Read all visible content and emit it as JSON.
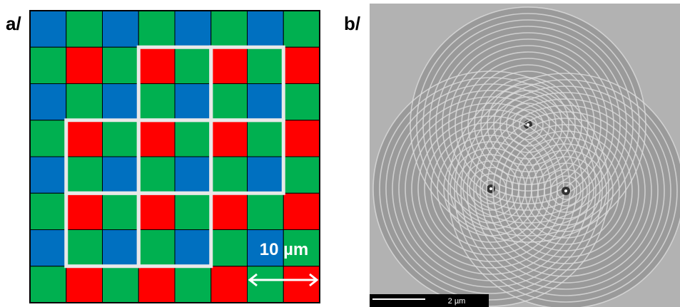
{
  "panels": [
    {
      "label": "a/",
      "scale_label": "10 µm"
    },
    {
      "label": "b/",
      "scale_label": "2 µm"
    }
  ]
}
